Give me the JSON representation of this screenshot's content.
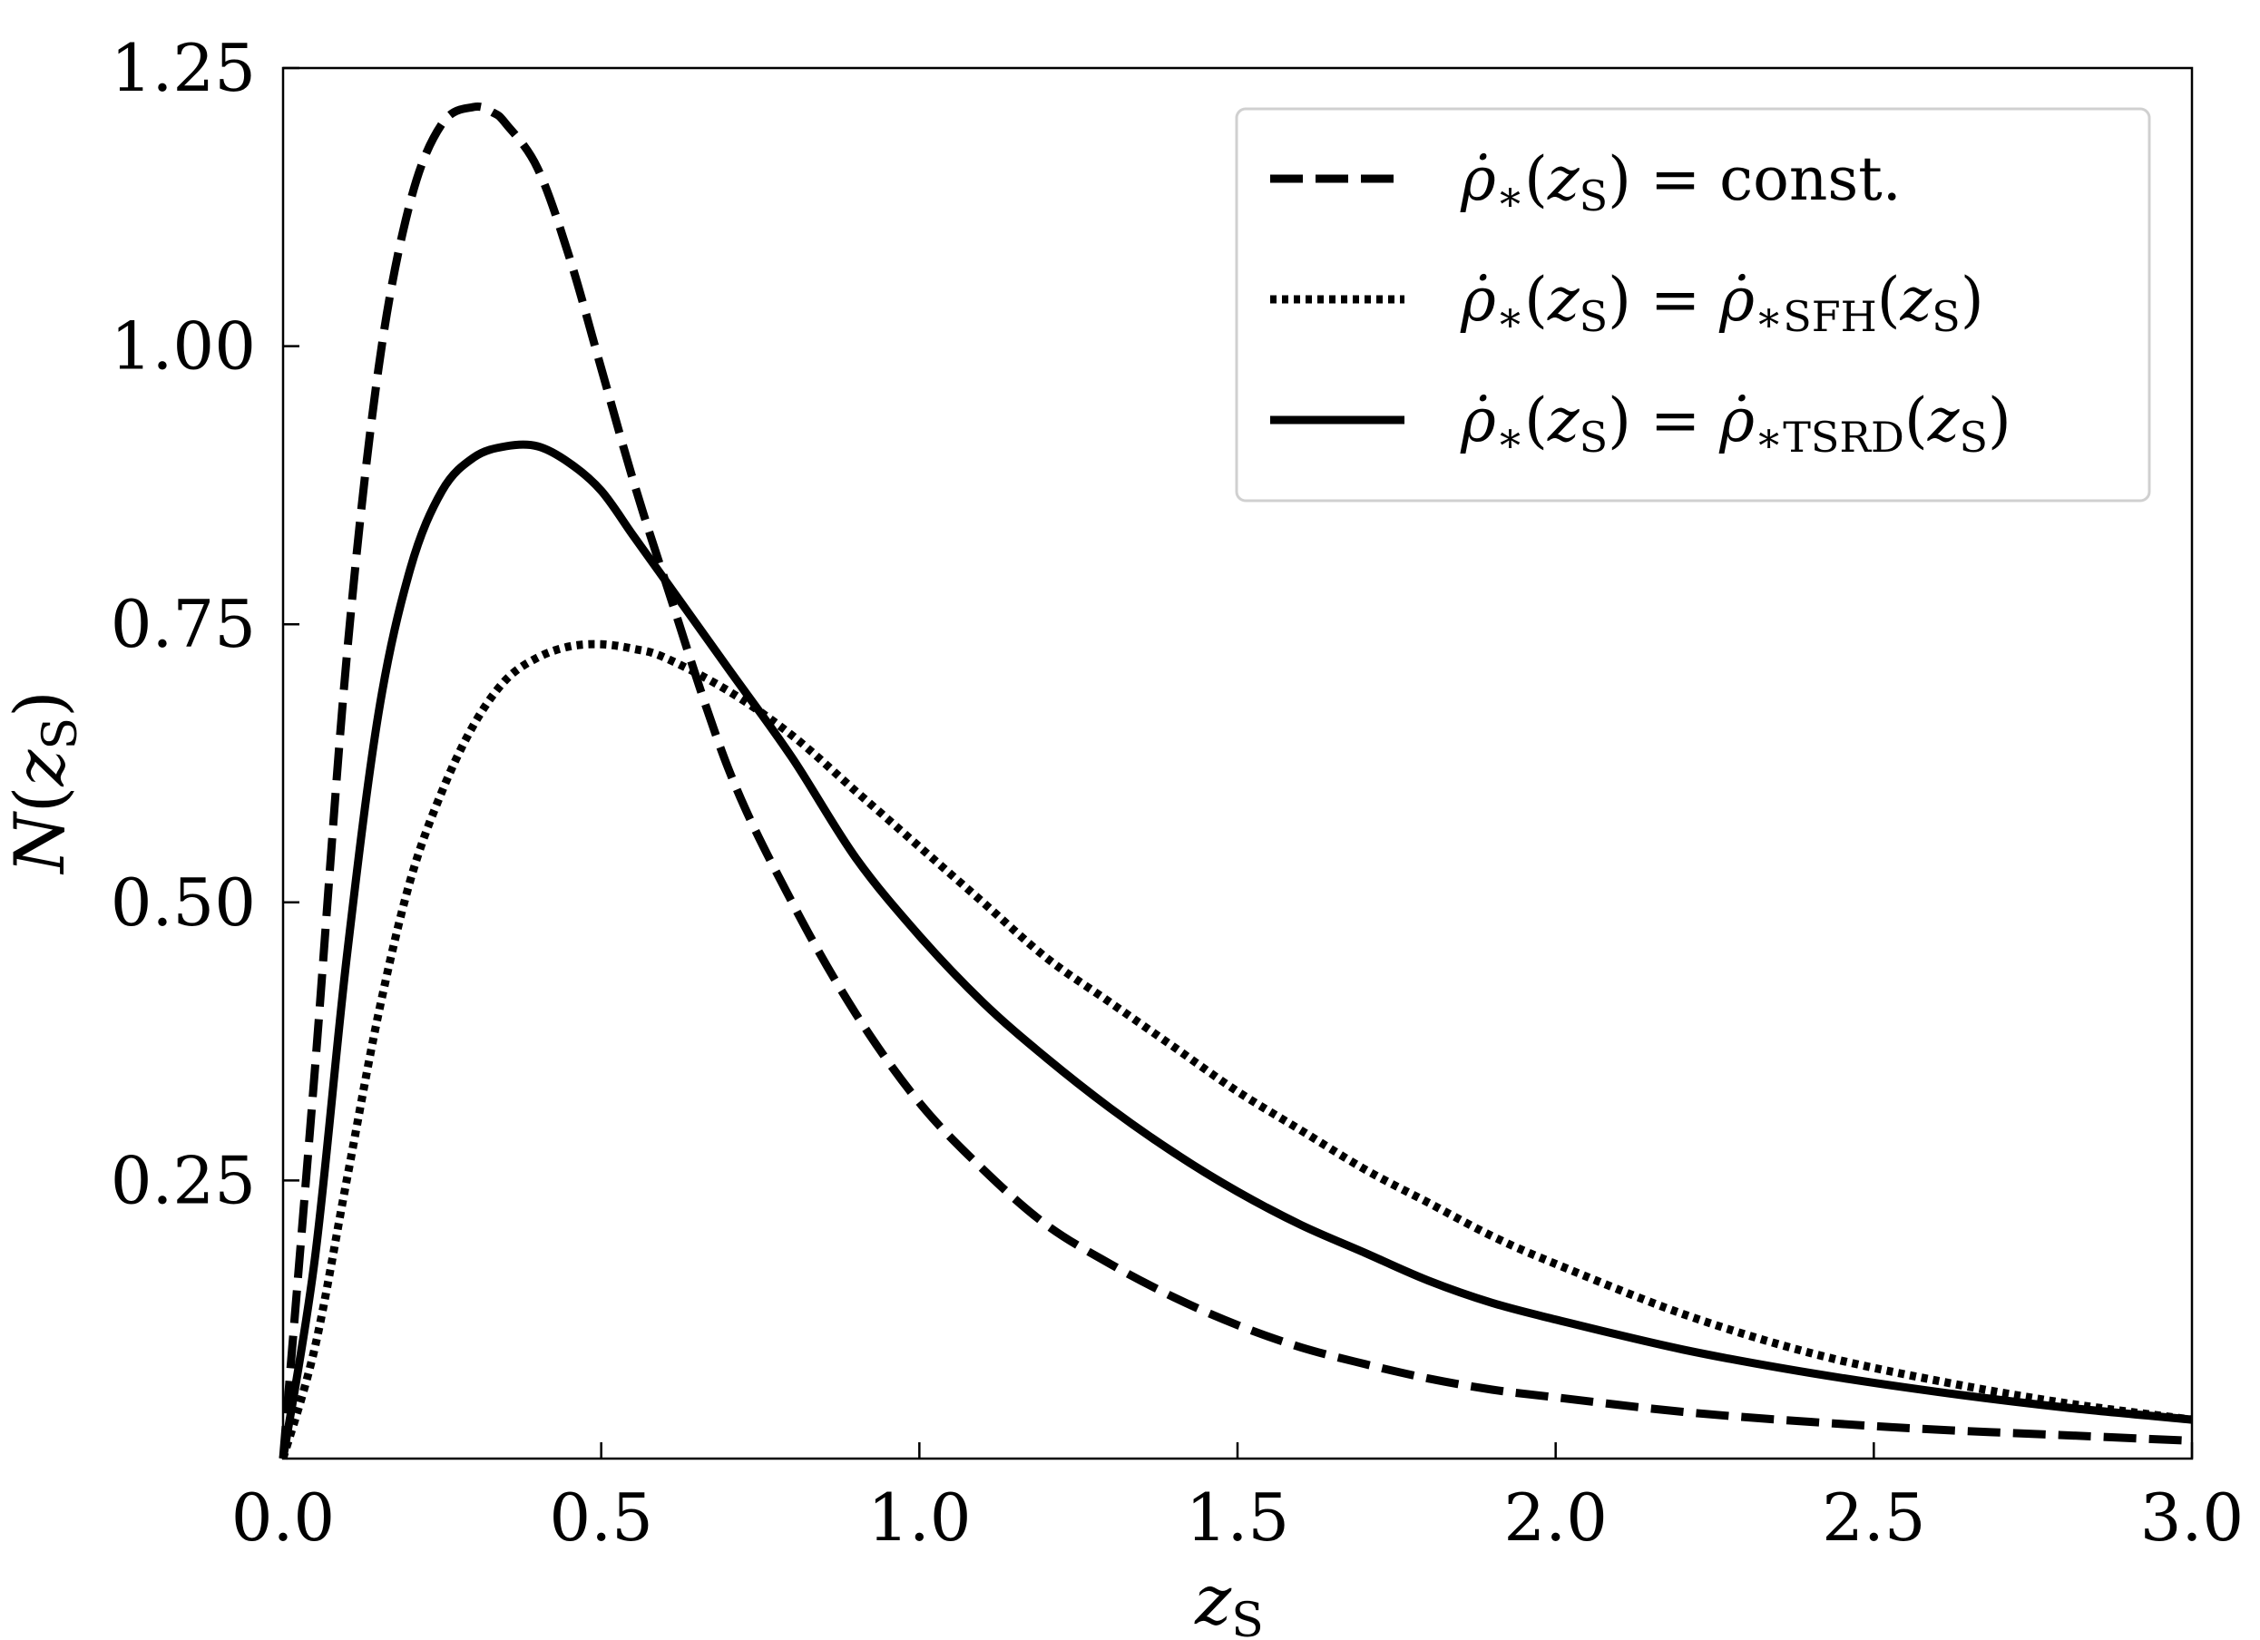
{
  "chart_data": {
    "type": "line",
    "xlabel": "z_S",
    "ylabel": "N(z_S)",
    "xlim": [
      0.0,
      3.0
    ],
    "ylim": [
      0.0,
      1.25
    ],
    "xticks": [
      "0.0",
      "0.5",
      "1.0",
      "1.5",
      "2.0",
      "2.5",
      "3.0"
    ],
    "yticks": [
      "0.25",
      "0.50",
      "0.75",
      "1.00",
      "1.25"
    ],
    "grid": false,
    "legend_position": "top-right",
    "series": [
      {
        "name": "ρ̇*(zS) = const.",
        "style": "dashed",
        "x": [
          0.0,
          0.05,
          0.1,
          0.15,
          0.2,
          0.25,
          0.3,
          0.33,
          0.35,
          0.4,
          0.45,
          0.5,
          0.55,
          0.6,
          0.7,
          0.8,
          0.9,
          1.0,
          1.1,
          1.2,
          1.3,
          1.4,
          1.5,
          1.6,
          1.7,
          1.8,
          1.9,
          2.0,
          2.2,
          2.4,
          2.6,
          2.8,
          3.0
        ],
        "y": [
          0.0,
          0.35,
          0.72,
          0.98,
          1.13,
          1.2,
          1.215,
          1.21,
          1.2,
          1.16,
          1.08,
          0.98,
          0.88,
          0.79,
          0.62,
          0.5,
          0.4,
          0.32,
          0.26,
          0.21,
          0.175,
          0.145,
          0.12,
          0.1,
          0.085,
          0.072,
          0.062,
          0.055,
          0.042,
          0.033,
          0.026,
          0.021,
          0.016
        ]
      },
      {
        "name": "ρ̇*(zS) = ρ̇*SFH(zS)",
        "style": "dotted",
        "x": [
          0.0,
          0.05,
          0.1,
          0.15,
          0.2,
          0.25,
          0.3,
          0.35,
          0.4,
          0.45,
          0.5,
          0.55,
          0.6,
          0.7,
          0.8,
          0.9,
          1.0,
          1.1,
          1.2,
          1.3,
          1.4,
          1.5,
          1.6,
          1.7,
          1.8,
          1.9,
          2.0,
          2.2,
          2.4,
          2.6,
          2.8,
          3.0
        ],
        "y": [
          0.0,
          0.1,
          0.25,
          0.4,
          0.52,
          0.6,
          0.66,
          0.7,
          0.72,
          0.73,
          0.732,
          0.728,
          0.72,
          0.69,
          0.65,
          0.6,
          0.55,
          0.5,
          0.45,
          0.41,
          0.37,
          0.33,
          0.295,
          0.26,
          0.23,
          0.2,
          0.175,
          0.13,
          0.095,
          0.07,
          0.05,
          0.035
        ]
      },
      {
        "name": "ρ̇*(zS) = ρ̇*TSRD(zS)",
        "style": "solid",
        "x": [
          0.0,
          0.05,
          0.1,
          0.15,
          0.2,
          0.25,
          0.3,
          0.35,
          0.4,
          0.45,
          0.5,
          0.55,
          0.6,
          0.7,
          0.8,
          0.9,
          1.0,
          1.1,
          1.2,
          1.3,
          1.4,
          1.5,
          1.6,
          1.7,
          1.8,
          1.9,
          2.0,
          2.2,
          2.4,
          2.6,
          2.8,
          3.0
        ],
        "y": [
          0.0,
          0.18,
          0.45,
          0.67,
          0.8,
          0.87,
          0.9,
          0.91,
          0.91,
          0.895,
          0.87,
          0.83,
          0.79,
          0.71,
          0.63,
          0.54,
          0.47,
          0.41,
          0.36,
          0.315,
          0.275,
          0.24,
          0.21,
          0.185,
          0.16,
          0.14,
          0.125,
          0.098,
          0.077,
          0.06,
          0.046,
          0.035
        ]
      }
    ]
  }
}
